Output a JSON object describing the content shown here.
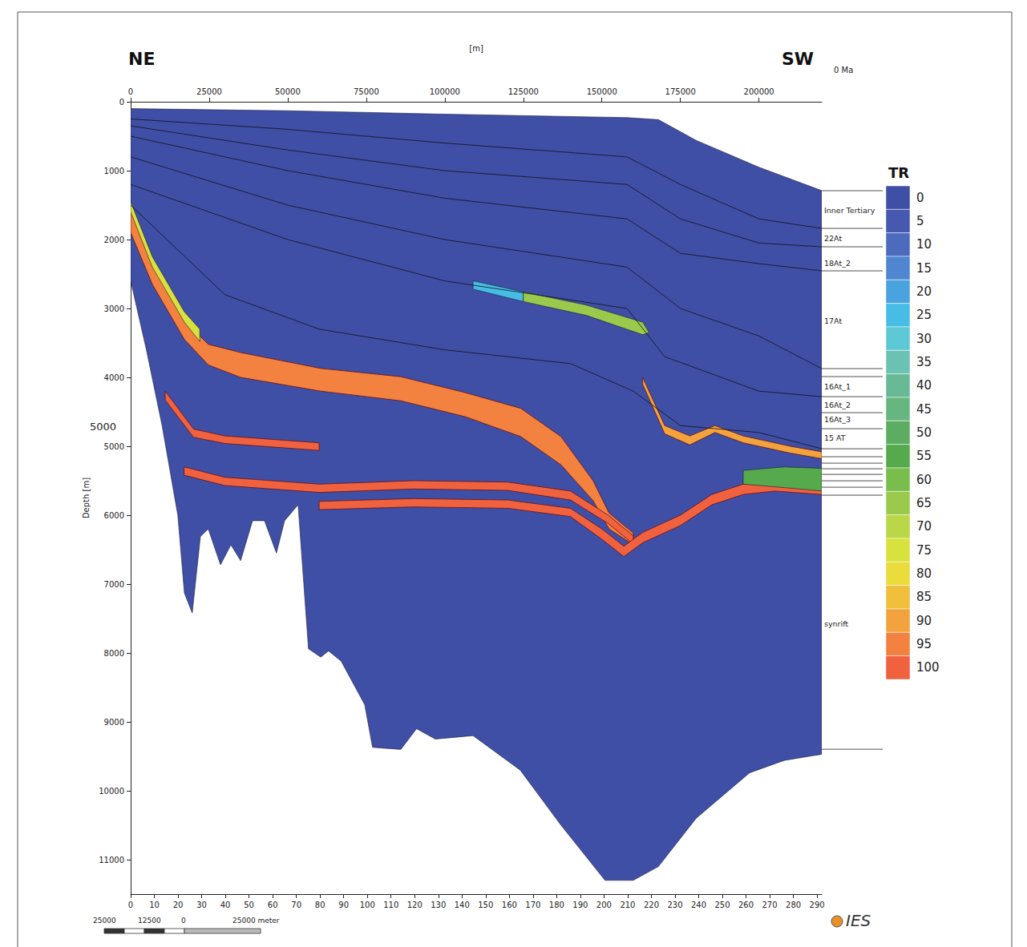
{
  "chart_data": {
    "type": "cross_section",
    "x_label": "[m]",
    "y_label": "Depth [m]",
    "xlim": [
      0,
      220000
    ],
    "xticks": [
      0,
      25000,
      50000,
      75000,
      100000,
      125000,
      150000,
      175000,
      200000
    ],
    "x2lim": [
      0,
      292
    ],
    "x2ticks": [
      0,
      10,
      20,
      30,
      40,
      50,
      60,
      70,
      80,
      90,
      100,
      110,
      120,
      130,
      140,
      150,
      160,
      170,
      180,
      190,
      200,
      210,
      220,
      230,
      240,
      250,
      260,
      270,
      280,
      290
    ],
    "ylim": [
      0,
      11500
    ],
    "yticks": [
      0,
      1000,
      2000,
      3000,
      4000,
      5000,
      6000,
      7000,
      8000,
      9000,
      10000,
      11000
    ],
    "grid": false,
    "annotations": {
      "left_end": "NE",
      "right_end": "SW",
      "age": "0 Ma",
      "logo": "IES",
      "depth_marker": {
        "text": "5000",
        "y": 4720
      }
    },
    "color_bar": {
      "title": "TR",
      "ticks": [
        0,
        5,
        10,
        15,
        20,
        25,
        30,
        35,
        40,
        45,
        50,
        55,
        60,
        65,
        70,
        75,
        80,
        85,
        90,
        95,
        100
      ],
      "colors": [
        "#3f4fa6",
        "#4659ae",
        "#4c6bbd",
        "#4f86cf",
        "#4aa3df",
        "#47bde6",
        "#5ec9d6",
        "#6bc2b3",
        "#68ba97",
        "#68b67f",
        "#5cad62",
        "#56a94c",
        "#79bd4d",
        "#99ca4c",
        "#b9d746",
        "#d8e23e",
        "#e9dc3b",
        "#f0c03c",
        "#f3a33d",
        "#f3813f",
        "#f0623f"
      ]
    },
    "layers": [
      {
        "tr": 0,
        "points": [
          [
            0,
            100
          ],
          [
            50000,
            130
          ],
          [
            100000,
            180
          ],
          [
            158000,
            230
          ],
          [
            168000,
            260
          ],
          [
            180000,
            560
          ],
          [
            200000,
            950
          ],
          [
            220000,
            1290
          ],
          [
            220000,
            9470
          ],
          [
            208000,
            9560
          ],
          [
            197000,
            9740
          ],
          [
            180000,
            10400
          ],
          [
            168000,
            11100
          ],
          [
            160000,
            11300
          ],
          [
            151000,
            11300
          ],
          [
            137000,
            10500
          ],
          [
            124000,
            9700
          ],
          [
            109000,
            9200
          ],
          [
            97000,
            9250
          ],
          [
            91000,
            9100
          ],
          [
            86000,
            9400
          ],
          [
            77000,
            9370
          ],
          [
            74500,
            8750
          ],
          [
            67000,
            8120
          ],
          [
            63000,
            7970
          ],
          [
            60500,
            8060
          ],
          [
            56600,
            7940
          ],
          [
            53300,
            5850
          ],
          [
            49000,
            6080
          ],
          [
            46400,
            6550
          ],
          [
            42600,
            6080
          ],
          [
            38800,
            6080
          ],
          [
            35000,
            6660
          ],
          [
            31900,
            6430
          ],
          [
            28600,
            6720
          ],
          [
            24700,
            6200
          ],
          [
            22200,
            6310
          ],
          [
            19600,
            7420
          ],
          [
            17100,
            7130
          ],
          [
            15000,
            6000
          ],
          [
            10000,
            4700
          ],
          [
            5000,
            3600
          ],
          [
            0,
            2600
          ]
        ]
      },
      {
        "tr": 95,
        "points": [
          [
            0,
            1570
          ],
          [
            6900,
            2360
          ],
          [
            17100,
            3175
          ],
          [
            24700,
            3520
          ],
          [
            35000,
            3640
          ],
          [
            60500,
            3870
          ],
          [
            86000,
            3990
          ],
          [
            106400,
            4220
          ],
          [
            124200,
            4450
          ],
          [
            137000,
            4860
          ],
          [
            147200,
            5500
          ],
          [
            152300,
            5970
          ],
          [
            160000,
            6260
          ],
          [
            160000,
            6430
          ],
          [
            152300,
            6200
          ],
          [
            147200,
            5790
          ],
          [
            137000,
            5270
          ],
          [
            124200,
            4860
          ],
          [
            106400,
            4570
          ],
          [
            86000,
            4340
          ],
          [
            60500,
            4200
          ],
          [
            35000,
            4000
          ],
          [
            24700,
            3820
          ],
          [
            17100,
            3450
          ],
          [
            6900,
            2650
          ],
          [
            0,
            1900
          ]
        ]
      },
      {
        "tr": 75,
        "points": [
          [
            0,
            1450
          ],
          [
            6900,
            2250
          ],
          [
            17100,
            3050
          ],
          [
            22000,
            3300
          ],
          [
            22000,
            3480
          ],
          [
            17100,
            3200
          ],
          [
            6900,
            2400
          ],
          [
            0,
            1600
          ]
        ]
      },
      {
        "tr": 100,
        "points": [
          [
            11000,
            4200
          ],
          [
            20000,
            4750
          ],
          [
            30000,
            4850
          ],
          [
            45000,
            4900
          ],
          [
            60000,
            4950
          ],
          [
            60000,
            5060
          ],
          [
            45000,
            5010
          ],
          [
            30000,
            4960
          ],
          [
            20000,
            4870
          ],
          [
            11000,
            4330
          ]
        ]
      },
      {
        "tr": 100,
        "points": [
          [
            17000,
            5300
          ],
          [
            30000,
            5450
          ],
          [
            60000,
            5550
          ],
          [
            90000,
            5500
          ],
          [
            120000,
            5520
          ],
          [
            140000,
            5650
          ],
          [
            152000,
            6000
          ],
          [
            160000,
            6300
          ],
          [
            160000,
            6420
          ],
          [
            152000,
            6120
          ],
          [
            140000,
            5780
          ],
          [
            120000,
            5640
          ],
          [
            90000,
            5620
          ],
          [
            60000,
            5670
          ],
          [
            30000,
            5570
          ],
          [
            17000,
            5420
          ]
        ]
      },
      {
        "tr": 100,
        "points": [
          [
            60000,
            5800
          ],
          [
            90000,
            5760
          ],
          [
            120000,
            5780
          ],
          [
            140000,
            5900
          ],
          [
            150000,
            6200
          ],
          [
            157000,
            6450
          ],
          [
            163000,
            6250
          ],
          [
            175000,
            6000
          ],
          [
            185000,
            5700
          ],
          [
            195000,
            5550
          ],
          [
            205000,
            5500
          ],
          [
            220000,
            5550
          ],
          [
            220000,
            5700
          ],
          [
            205000,
            5650
          ],
          [
            195000,
            5700
          ],
          [
            185000,
            5850
          ],
          [
            175000,
            6150
          ],
          [
            163000,
            6400
          ],
          [
            157000,
            6600
          ],
          [
            150000,
            6350
          ],
          [
            140000,
            6020
          ],
          [
            120000,
            5900
          ],
          [
            90000,
            5880
          ],
          [
            60000,
            5920
          ]
        ]
      },
      {
        "tr": 90,
        "points": [
          [
            163000,
            4000
          ],
          [
            170000,
            4700
          ],
          [
            178000,
            4850
          ],
          [
            186000,
            4700
          ],
          [
            195000,
            4850
          ],
          [
            210000,
            5000
          ],
          [
            220000,
            5080
          ],
          [
            220000,
            5180
          ],
          [
            210000,
            5100
          ],
          [
            195000,
            4950
          ],
          [
            186000,
            4800
          ],
          [
            178000,
            4980
          ],
          [
            170000,
            4820
          ],
          [
            163000,
            4100
          ]
        ]
      },
      {
        "tr": 55,
        "points": [
          [
            195000,
            5350
          ],
          [
            208000,
            5300
          ],
          [
            220000,
            5320
          ],
          [
            220000,
            5650
          ],
          [
            208000,
            5600
          ],
          [
            195000,
            5550
          ]
        ]
      },
      {
        "tr": 25,
        "points": [
          [
            109000,
            2600
          ],
          [
            125000,
            2760
          ],
          [
            125000,
            2900
          ],
          [
            109000,
            2720
          ]
        ]
      },
      {
        "tr": 65,
        "points": [
          [
            125000,
            2760
          ],
          [
            145000,
            2950
          ],
          [
            163000,
            3200
          ],
          [
            165000,
            3350
          ],
          [
            163000,
            3380
          ],
          [
            145000,
            3100
          ],
          [
            125000,
            2900
          ]
        ]
      }
    ],
    "horizons": [
      [
        [
          0,
          250
        ],
        [
          50000,
          400
        ],
        [
          100000,
          600
        ],
        [
          158000,
          800
        ],
        [
          175000,
          1200
        ],
        [
          200000,
          1700
        ],
        [
          220000,
          1838
        ]
      ],
      [
        [
          0,
          350
        ],
        [
          50000,
          700
        ],
        [
          100000,
          1000
        ],
        [
          158000,
          1200
        ],
        [
          175000,
          1700
        ],
        [
          200000,
          2050
        ],
        [
          220000,
          2105
        ]
      ],
      [
        [
          0,
          500
        ],
        [
          50000,
          1000
        ],
        [
          100000,
          1400
        ],
        [
          158000,
          1700
        ],
        [
          175000,
          2200
        ],
        [
          200000,
          2350
        ],
        [
          220000,
          2454
        ]
      ],
      [
        [
          0,
          800
        ],
        [
          50000,
          1500
        ],
        [
          100000,
          2000
        ],
        [
          158000,
          2400
        ],
        [
          175000,
          3000
        ],
        [
          200000,
          3400
        ],
        [
          220000,
          3873
        ]
      ],
      [
        [
          0,
          1200
        ],
        [
          50000,
          2000
        ],
        [
          100000,
          2600
        ],
        [
          158000,
          3000
        ],
        [
          170000,
          3700
        ],
        [
          200000,
          4200
        ],
        [
          220000,
          4280
        ]
      ],
      [
        [
          0,
          1500
        ],
        [
          30000,
          2800
        ],
        [
          60000,
          3300
        ],
        [
          100000,
          3600
        ],
        [
          140000,
          3800
        ],
        [
          160000,
          4200
        ],
        [
          175000,
          4700
        ],
        [
          200000,
          4800
        ],
        [
          220000,
          5036
        ]
      ]
    ],
    "formations": {
      "boundaries": [
        1291,
        1838,
        2105,
        2454,
        3873,
        3989,
        4280,
        4512,
        4745,
        5036,
        5152,
        5245,
        5326,
        5408,
        5501,
        5594,
        5710,
        9397
      ],
      "labels": [
        {
          "name": "Inner Tertiary",
          "depth": 1570
        },
        {
          "name": "22At",
          "depth": 1977
        },
        {
          "name": "18At_2",
          "depth": 2338
        },
        {
          "name": "17At",
          "depth": 3175
        },
        {
          "name": "16At_1",
          "depth": 4129
        },
        {
          "name": "16At_2",
          "depth": 4396
        },
        {
          "name": "16At_3",
          "depth": 4605
        },
        {
          "name": "15 AT",
          "depth": 4873
        },
        {
          "name": "synrift",
          "depth": 7571
        }
      ]
    },
    "scale_bar": {
      "labels": [
        "25000",
        "12500",
        "0",
        "25000 meter"
      ]
    }
  }
}
